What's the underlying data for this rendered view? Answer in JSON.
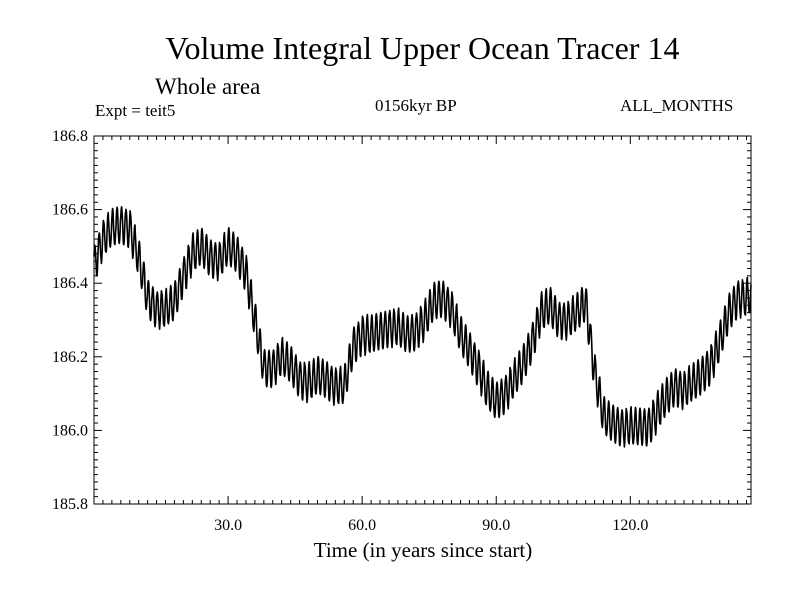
{
  "chart_data": {
    "type": "line",
    "title": "Volume Integral Upper Ocean Tracer 14",
    "subtitle": "Whole area",
    "annotations": {
      "expt": "Expt = teit5",
      "epoch": "0156kyr BP",
      "months": "ALL_MONTHS"
    },
    "xlabel": "Time (in years since start)",
    "ylabel": "",
    "xlim": [
      0,
      147
    ],
    "ylim": [
      185.8,
      186.8
    ],
    "xticks": [
      {
        "value": 30,
        "label": "30.0"
      },
      {
        "value": 60,
        "label": "60.0"
      },
      {
        "value": 90,
        "label": "90.0"
      },
      {
        "value": 120,
        "label": "120.0"
      }
    ],
    "yticks": [
      {
        "value": 185.8,
        "label": "185.8"
      },
      {
        "value": 186.0,
        "label": "186.0"
      },
      {
        "value": 186.2,
        "label": "186.2"
      },
      {
        "value": 186.4,
        "label": "186.4"
      },
      {
        "value": 186.6,
        "label": "186.6"
      },
      {
        "value": 186.8,
        "label": "186.8"
      }
    ],
    "seasonal_amplitude": 0.05,
    "series": [
      {
        "name": "Tracer 14",
        "color": "#000000",
        "x": [
          0,
          2,
          4,
          6,
          8,
          10,
          12,
          14,
          16,
          18,
          20,
          22,
          24,
          26,
          28,
          30,
          32,
          34,
          36,
          38,
          40,
          42,
          44,
          46,
          48,
          50,
          52,
          54,
          56,
          58,
          60,
          62,
          64,
          66,
          68,
          70,
          72,
          74,
          76,
          78,
          80,
          82,
          84,
          86,
          88,
          90,
          92,
          94,
          96,
          98,
          100,
          102,
          104,
          106,
          108,
          110,
          112,
          114,
          116,
          118,
          120,
          122,
          124,
          126,
          128,
          130,
          132,
          134,
          136,
          138,
          140,
          142,
          144,
          146,
          147
        ],
        "values": [
          186.45,
          186.52,
          186.55,
          186.56,
          186.55,
          186.47,
          186.36,
          186.33,
          186.33,
          186.35,
          186.42,
          186.48,
          186.5,
          186.47,
          186.46,
          186.5,
          186.48,
          186.43,
          186.3,
          186.17,
          186.17,
          186.2,
          186.18,
          186.14,
          186.13,
          186.15,
          186.14,
          186.12,
          186.12,
          186.23,
          186.26,
          186.26,
          186.27,
          186.28,
          186.28,
          186.26,
          186.27,
          186.3,
          186.35,
          186.36,
          186.33,
          186.26,
          186.22,
          186.17,
          186.11,
          186.08,
          186.1,
          186.14,
          186.18,
          186.24,
          186.32,
          186.34,
          186.3,
          186.3,
          186.32,
          186.35,
          186.16,
          186.04,
          186.02,
          186.01,
          186.01,
          186.01,
          186.01,
          186.05,
          186.09,
          186.12,
          186.11,
          186.13,
          186.15,
          186.18,
          186.24,
          186.32,
          186.36,
          186.36,
          186.37
        ]
      }
    ]
  }
}
